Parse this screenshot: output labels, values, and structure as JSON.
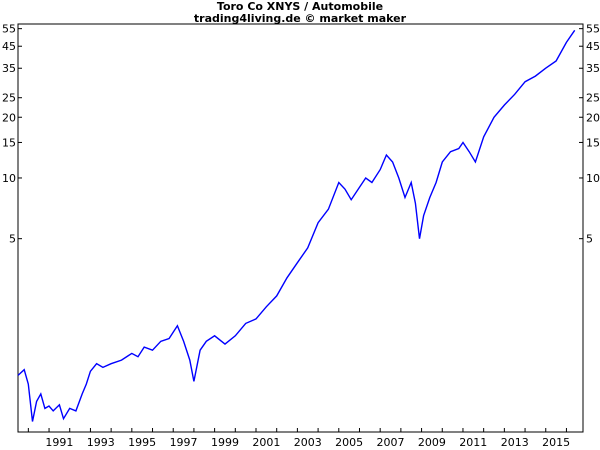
{
  "chart_data": {
    "type": "line",
    "title": "Toro Co XNYS / Automobile",
    "subtitle": "trading4living.de © market maker",
    "xlabel": "",
    "ylabel": "",
    "y_scale": "log",
    "ylim": [
      0.55,
      58
    ],
    "xlim": [
      1989.5,
      2016.8
    ],
    "grid": false,
    "legend": "none",
    "line_color": "#0000ff",
    "y_ticks": [
      5,
      10,
      15,
      20,
      25,
      35,
      45,
      55
    ],
    "x_ticks": [
      "1991",
      "1993",
      "1995",
      "1997",
      "1999",
      "2001",
      "2003",
      "2005",
      "2007",
      "2009",
      "2011",
      "2013",
      "2015"
    ],
    "series": [
      {
        "x": [
          1989.5,
          1989.8,
          1990.0,
          1990.2,
          1990.4,
          1990.6,
          1990.8,
          1991.0,
          1991.2,
          1991.5,
          1991.7,
          1992.0,
          1992.3,
          1992.6,
          1992.8,
          1993.0,
          1993.3,
          1993.6,
          1994.0,
          1994.5,
          1995.0,
          1995.3,
          1995.6,
          1996.0,
          1996.4,
          1996.8,
          1997.2,
          1997.5,
          1997.8,
          1998.0,
          1998.3,
          1998.6,
          1999.0,
          1999.5,
          2000.0,
          2000.5,
          2001.0,
          2001.5,
          2002.0,
          2002.5,
          2003.0,
          2003.5,
          2004.0,
          2004.5,
          2005.0,
          2005.3,
          2005.6,
          2006.0,
          2006.3,
          2006.6,
          2007.0,
          2007.3,
          2007.6,
          2007.9,
          2008.2,
          2008.5,
          2008.7,
          2008.9,
          2009.1,
          2009.4,
          2009.7,
          2010.0,
          2010.4,
          2010.8,
          2011.0,
          2011.3,
          2011.6,
          2012.0,
          2012.5,
          2013.0,
          2013.5,
          2014.0,
          2014.5,
          2015.0,
          2015.5,
          2016.0,
          2016.4
        ],
        "values": [
          1.05,
          1.12,
          0.95,
          0.62,
          0.78,
          0.85,
          0.72,
          0.74,
          0.7,
          0.75,
          0.64,
          0.72,
          0.7,
          0.85,
          0.95,
          1.1,
          1.2,
          1.15,
          1.2,
          1.25,
          1.35,
          1.3,
          1.45,
          1.4,
          1.55,
          1.6,
          1.85,
          1.55,
          1.25,
          0.98,
          1.4,
          1.55,
          1.65,
          1.5,
          1.65,
          1.9,
          2.0,
          2.3,
          2.6,
          3.2,
          3.8,
          4.5,
          6.0,
          7.0,
          9.5,
          8.8,
          7.8,
          9.0,
          10.0,
          9.5,
          11.0,
          13.0,
          12.0,
          10.0,
          8.0,
          9.5,
          7.5,
          5.0,
          6.5,
          8.0,
          9.5,
          12.0,
          13.5,
          14.0,
          15.0,
          13.5,
          12.0,
          16.0,
          20.0,
          23.0,
          26.0,
          30.0,
          32.0,
          35.0,
          38.0,
          47.0,
          54.0
        ]
      }
    ]
  }
}
